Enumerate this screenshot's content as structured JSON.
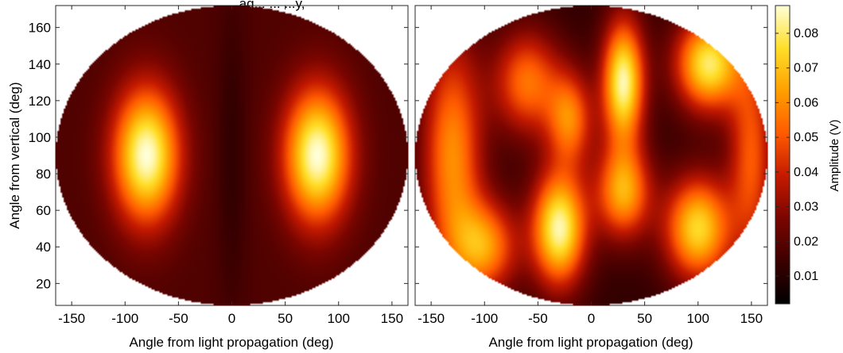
{
  "header_fragment": "...ag... ... ...y,",
  "colors": {
    "colormap": [
      "#000000",
      "#3c0000",
      "#7a0500",
      "#c41a00",
      "#ff5a00",
      "#ff9f00",
      "#ffde28",
      "#ffffd8"
    ],
    "frame": "#262626",
    "background": "#ffffff"
  },
  "chart_data": [
    {
      "type": "heatmap",
      "projection": "elliptical (equal-area style) sphere map",
      "title": "",
      "xlabel": "Angle from light propagation (deg)",
      "ylabel": "Angle from vertical (deg)",
      "xlim": [
        -165,
        165
      ],
      "ylim": [
        8,
        172
      ],
      "x_ticks": [
        -150,
        -100,
        -50,
        0,
        50,
        100,
        150
      ],
      "y_ticks": [
        20,
        40,
        60,
        80,
        100,
        120,
        140,
        160
      ],
      "x_tick_labels": [
        "-150",
        "-100",
        "-50",
        "0",
        "50",
        "100",
        "150"
      ],
      "y_tick_labels": [
        "20",
        "40",
        "60",
        "80",
        "100",
        "120",
        "140",
        "160"
      ],
      "grid": false,
      "features": [
        {
          "x": -80,
          "y": 90,
          "value": 0.088,
          "sx": 22,
          "sy": 26
        },
        {
          "x": 80,
          "y": 90,
          "value": 0.088,
          "sx": 22,
          "sy": 26
        },
        {
          "x": 0,
          "y": 90,
          "value": 0.012,
          "sx": 10,
          "sy": 60
        }
      ],
      "background_level": 0.018
    },
    {
      "type": "heatmap",
      "projection": "elliptical (equal-area style) sphere map",
      "title": "",
      "xlabel": "Angle from light propagation (deg)",
      "ylabel": "",
      "xlim": [
        -165,
        165
      ],
      "ylim": [
        8,
        172
      ],
      "x_ticks": [
        -150,
        -100,
        -50,
        0,
        50,
        100,
        150
      ],
      "y_ticks": [
        20,
        40,
        60,
        80,
        100,
        120,
        140,
        160
      ],
      "x_tick_labels": [
        "-150",
        "-100",
        "-50",
        "0",
        "50",
        "100",
        "150"
      ],
      "y_tick_labels": [],
      "grid": false,
      "features": [
        {
          "x": -30,
          "y": 50,
          "value": 0.085,
          "sx": 18,
          "sy": 22
        },
        {
          "x": 30,
          "y": 130,
          "value": 0.085,
          "sx": 14,
          "sy": 24
        },
        {
          "x": 110,
          "y": 140,
          "value": 0.08,
          "sx": 22,
          "sy": 18
        },
        {
          "x": 100,
          "y": 50,
          "value": 0.075,
          "sx": 22,
          "sy": 20
        },
        {
          "x": 30,
          "y": 70,
          "value": 0.065,
          "sx": 18,
          "sy": 18
        },
        {
          "x": -130,
          "y": 90,
          "value": 0.06,
          "sx": 20,
          "sy": 45
        },
        {
          "x": -20,
          "y": 110,
          "value": 0.055,
          "sx": 15,
          "sy": 18
        },
        {
          "x": -60,
          "y": 130,
          "value": 0.055,
          "sx": 22,
          "sy": 20
        },
        {
          "x": -100,
          "y": 40,
          "value": 0.06,
          "sx": 22,
          "sy": 18
        },
        {
          "x": 150,
          "y": 90,
          "value": 0.05,
          "sx": 15,
          "sy": 40
        }
      ],
      "background_level": 0.012
    }
  ],
  "colorbar": {
    "label": "Amplitude (V)",
    "min": 0.002,
    "max": 0.088,
    "ticks": [
      0.01,
      0.02,
      0.03,
      0.04,
      0.05,
      0.06,
      0.07,
      0.08
    ],
    "tick_labels": [
      "0.01",
      "0.02",
      "0.03",
      "0.04",
      "0.05",
      "0.06",
      "0.07",
      "0.08"
    ]
  }
}
